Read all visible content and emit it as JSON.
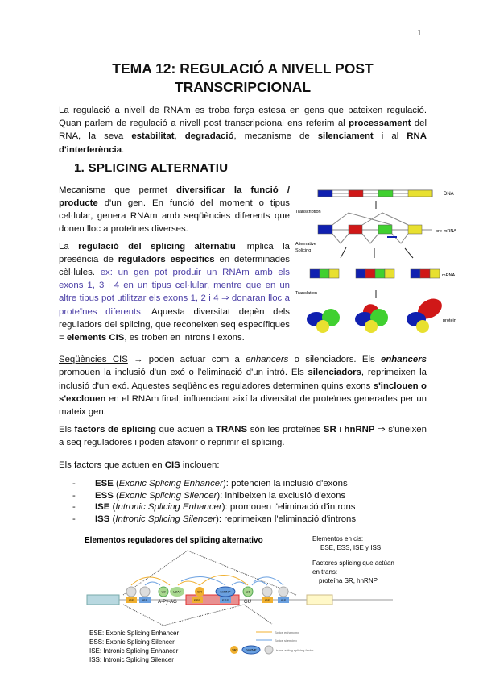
{
  "page_number": "1",
  "title": [
    "TEMA 12: REGULACIÓ A NIVELL POST",
    "TRANSCRIPCIONAL"
  ],
  "intro": [
    {
      "t": "La regulació a nivell de RNAm es troba força estesa en gens que pateixen regulació. Quan parlem de regulació a nivell post transcripcional ens referim al "
    },
    {
      "t": "processament",
      "b": true
    },
    {
      "t": " del RNA, la seva "
    },
    {
      "t": "estabilitat",
      "b": true
    },
    {
      "t": ", "
    },
    {
      "t": "degradació",
      "b": true
    },
    {
      "t": ", mecanisme de "
    },
    {
      "t": "silenciament",
      "b": true
    },
    {
      "t": " i al "
    },
    {
      "t": "RNA d'interferència",
      "b": true
    },
    {
      "t": "."
    }
  ],
  "section_heading": "1.  SPLICING ALTERNATIU",
  "para1": [
    {
      "t": "Mecanisme que permet "
    },
    {
      "t": "diversificar la funció / producte",
      "b": true
    },
    {
      "t": " d'un gen. En funció del moment o tipus cel·lular, genera RNAm amb seqüències diferents que donen lloc a proteïnes diverses."
    }
  ],
  "para2": [
    {
      "t": "La "
    },
    {
      "t": "regulació del splicing alternatiu",
      "b": true
    },
    {
      "t": " implica la presència de "
    },
    {
      "t": "reguladors específics",
      "b": true
    },
    {
      "t": " en determinades cèl·lules. "
    },
    {
      "t": "ex: un gen pot produir un RNAm amb els exons 1, 3 i 4 en un tipus cel·lular, mentre que en un altre tipus pot utilitzar els exons 1, 2 i 4 ⇒ donaran lloc a proteïnes diferents.",
      "c": "blue"
    },
    {
      "t": " Aquesta diversitat depèn dels reguladors del splicing, que reconeixen seq específiques = "
    },
    {
      "t": "elements CIS",
      "b": true
    },
    {
      "t": ", es troben en introns i exons."
    }
  ],
  "para3": [
    {
      "t": "Seqüències CIS",
      "u": true
    },
    {
      "t": " → poden actuar com a "
    },
    {
      "t": "enhancers",
      "i": true
    },
    {
      "t": " o silenciadors. Els "
    },
    {
      "t": "enhancers",
      "b": true,
      "i": true
    },
    {
      "t": " promouen la inclusió d'un exó o l'eliminació d'un intró. Els "
    },
    {
      "t": "silenciadors",
      "b": true
    },
    {
      "t": ", reprimeixen la inclusió d'un exó. Aquestes seqüències reguladores determinen quins exons "
    },
    {
      "t": "s'inclouen o s'exclouen",
      "b": true
    },
    {
      "t": " en el RNAm final, influenciant així la diversitat de proteïnes generades per un mateix gen."
    }
  ],
  "para4": [
    {
      "t": "Els "
    },
    {
      "t": "factors de splicing",
      "b": true
    },
    {
      "t": " que actuen a "
    },
    {
      "t": "TRANS",
      "b": true
    },
    {
      "t": " són les proteïnes "
    },
    {
      "t": "SR",
      "b": true
    },
    {
      "t": " i "
    },
    {
      "t": "hnRNP",
      "b": true
    },
    {
      "t": " ⇒ s'uneixen a seq reguladores i poden afavorir o reprimir el splicing."
    }
  ],
  "para5": [
    {
      "t": "Els factors que actuen en "
    },
    {
      "t": "CIS",
      "b": true
    },
    {
      "t": " inclouen:"
    }
  ],
  "list": [
    {
      "dash": "-",
      "abbr": "ESE",
      "full": "Exonic Splicing Enhancer",
      "desc": ": potencien la inclusió d'exons"
    },
    {
      "dash": "-",
      "abbr": "ESS",
      "full": "Exonic Splicing Silencer",
      "desc": ": inhibeixen la exclusió d'exons"
    },
    {
      "dash": "-",
      "abbr": "ISE",
      "full": "Intronic Splicing Enhancer",
      "desc": ": promouen l'eliminació d'introns"
    },
    {
      "dash": "-",
      "abbr": "ISS",
      "full": "Intronic Splicing Silencer",
      "desc": ": reprimeixen l'eliminació d'introns"
    }
  ],
  "figure1": {
    "labels": {
      "dna": "DNA",
      "transcription": "Transcription",
      "pre_mrna": "pre-mRNA",
      "alt1": "Alternative",
      "alt2": "Splicing",
      "mrna": "mRNA",
      "translation": "Translation",
      "protein": "protein"
    },
    "colors": {
      "exon1": "#1020b0",
      "exon2": "#d01818",
      "exon3": "#40d030",
      "exon4": "#e8e030"
    }
  },
  "figure2": {
    "title": "Elementos reguladores del splicing alternativo",
    "cis_title": "Elementos en cis:",
    "cis_items": "ESE, ESS, ISE y ISS",
    "trans_title1": "Factores splicing que actúan",
    "trans_title2": "en trans:",
    "trans_items": "proteína SR, hnRNP",
    "seq_labels": {
      "ise": "ISE",
      "iss": "ISS",
      "ese": "ESE",
      "ess": "ESS",
      "apyag": "A-Py-AG",
      "gu": "GU",
      "u2": "U2",
      "u2af": "U2AF",
      "sr": "SR",
      "hnrnp": "hnRNP",
      "u1": "U1"
    },
    "definitions": [
      "ESE: Exonic Splicing Enhancer",
      "ESS: Exonic Splicing Silencer",
      "ISE: Intronic Splicing Enhancer",
      "ISS: Intronic Splicing Silencer"
    ],
    "legend": {
      "enhancing": "Splice enhancing",
      "silencing": "Splice silencing",
      "factor": "trans-acting splicing factor"
    },
    "colors": {
      "sr": "#f0b030",
      "hnrnp": "#6aa0e0",
      "exon": "#e89090",
      "exon_border": "#e03030",
      "left_exon": "#b8d8e0",
      "right_exon": "#fff8c8",
      "enhancing": "#f0b030",
      "silencing": "#6aa0e0",
      "u": "#a8d890"
    }
  }
}
